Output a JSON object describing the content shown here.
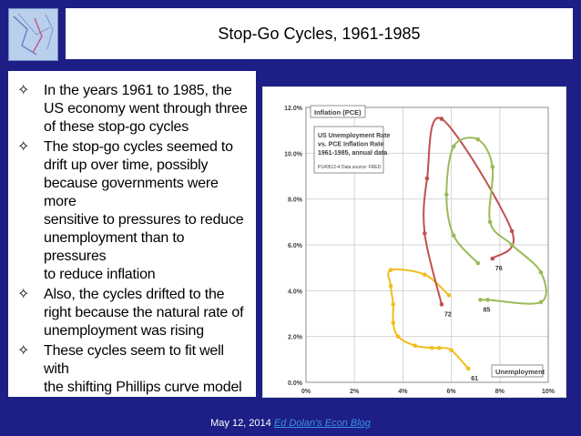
{
  "header": {
    "title": "Stop-Go Cycles, 1961-1985"
  },
  "bullets": [
    {
      "lines": [
        "In the years 1961 to 1985, the",
        "US economy went through three",
        "of these stop-go cycles"
      ]
    },
    {
      "lines": [
        "The stop-go cycles seemed to",
        "drift up over time, possibly",
        "because governments were more",
        "sensitive to pressures to reduce",
        "unemployment than to pressures",
        "to reduce inflation"
      ]
    },
    {
      "lines": [
        "Also, the cycles drifted to the",
        "right because the natural rate of",
        "unemployment was rising"
      ]
    },
    {
      "lines": [
        "These cycles seem to fit well with",
        "the shifting Phillips curve model"
      ]
    }
  ],
  "bullet_icon": "four-point-star-icon",
  "footer": {
    "date": "May 12, 2014",
    "link_text": "Ed Dolan's Econ Blog"
  },
  "chart_data": {
    "type": "scatter",
    "title_lines": [
      "US Unemployment Rate",
      "vs. PCE Inflation Rate",
      "1961-1985,  annual data"
    ],
    "source": "P140512-4 Data source: FRED",
    "ylabel": "Inflation (PCE)",
    "xlabel": "Unemployment",
    "x_ticks": [
      "0%",
      "2%",
      "4%",
      "6%",
      "8%",
      "10%"
    ],
    "y_ticks": [
      "0.0%",
      "2.0%",
      "4.0%",
      "6.0%",
      "8.0%",
      "10.0%",
      "12.0%"
    ],
    "xlim": [
      0,
      10
    ],
    "ylim": [
      0,
      12
    ],
    "grid": true,
    "series": [
      {
        "color": "#f2bd1b",
        "points": [
          [
            6.7,
            0.6
          ],
          [
            6.0,
            1.4
          ],
          [
            5.5,
            1.5
          ],
          [
            5.2,
            1.5
          ],
          [
            4.5,
            1.6
          ],
          [
            3.8,
            2.0
          ],
          [
            3.6,
            2.6
          ],
          [
            3.6,
            3.4
          ],
          [
            3.5,
            4.2
          ],
          [
            3.5,
            4.9
          ],
          [
            4.9,
            4.7
          ],
          [
            5.9,
            3.8
          ]
        ]
      },
      {
        "color": "#c0504d",
        "points": [
          [
            5.6,
            3.4
          ],
          [
            4.9,
            6.5
          ],
          [
            5.0,
            8.9
          ],
          [
            5.6,
            11.5
          ],
          [
            8.5,
            6.6
          ],
          [
            7.7,
            5.4
          ]
        ]
      },
      {
        "color": "#9bbb59",
        "points": [
          [
            7.1,
            5.2
          ],
          [
            6.1,
            6.4
          ],
          [
            5.8,
            8.2
          ],
          [
            6.1,
            10.3
          ],
          [
            7.1,
            10.6
          ],
          [
            7.7,
            9.4
          ],
          [
            7.6,
            7.0
          ],
          [
            8.5,
            6.0
          ],
          [
            9.7,
            4.8
          ],
          [
            9.7,
            3.5
          ],
          [
            7.5,
            3.6
          ],
          [
            7.2,
            3.6
          ]
        ]
      }
    ],
    "annotations": [
      {
        "text": "61",
        "x": 6.7,
        "y": 0.6
      },
      {
        "text": "72",
        "x": 5.6,
        "y": 3.4
      },
      {
        "text": "76",
        "x": 7.7,
        "y": 5.4
      },
      {
        "text": "85",
        "x": 7.2,
        "y": 3.6
      }
    ]
  }
}
